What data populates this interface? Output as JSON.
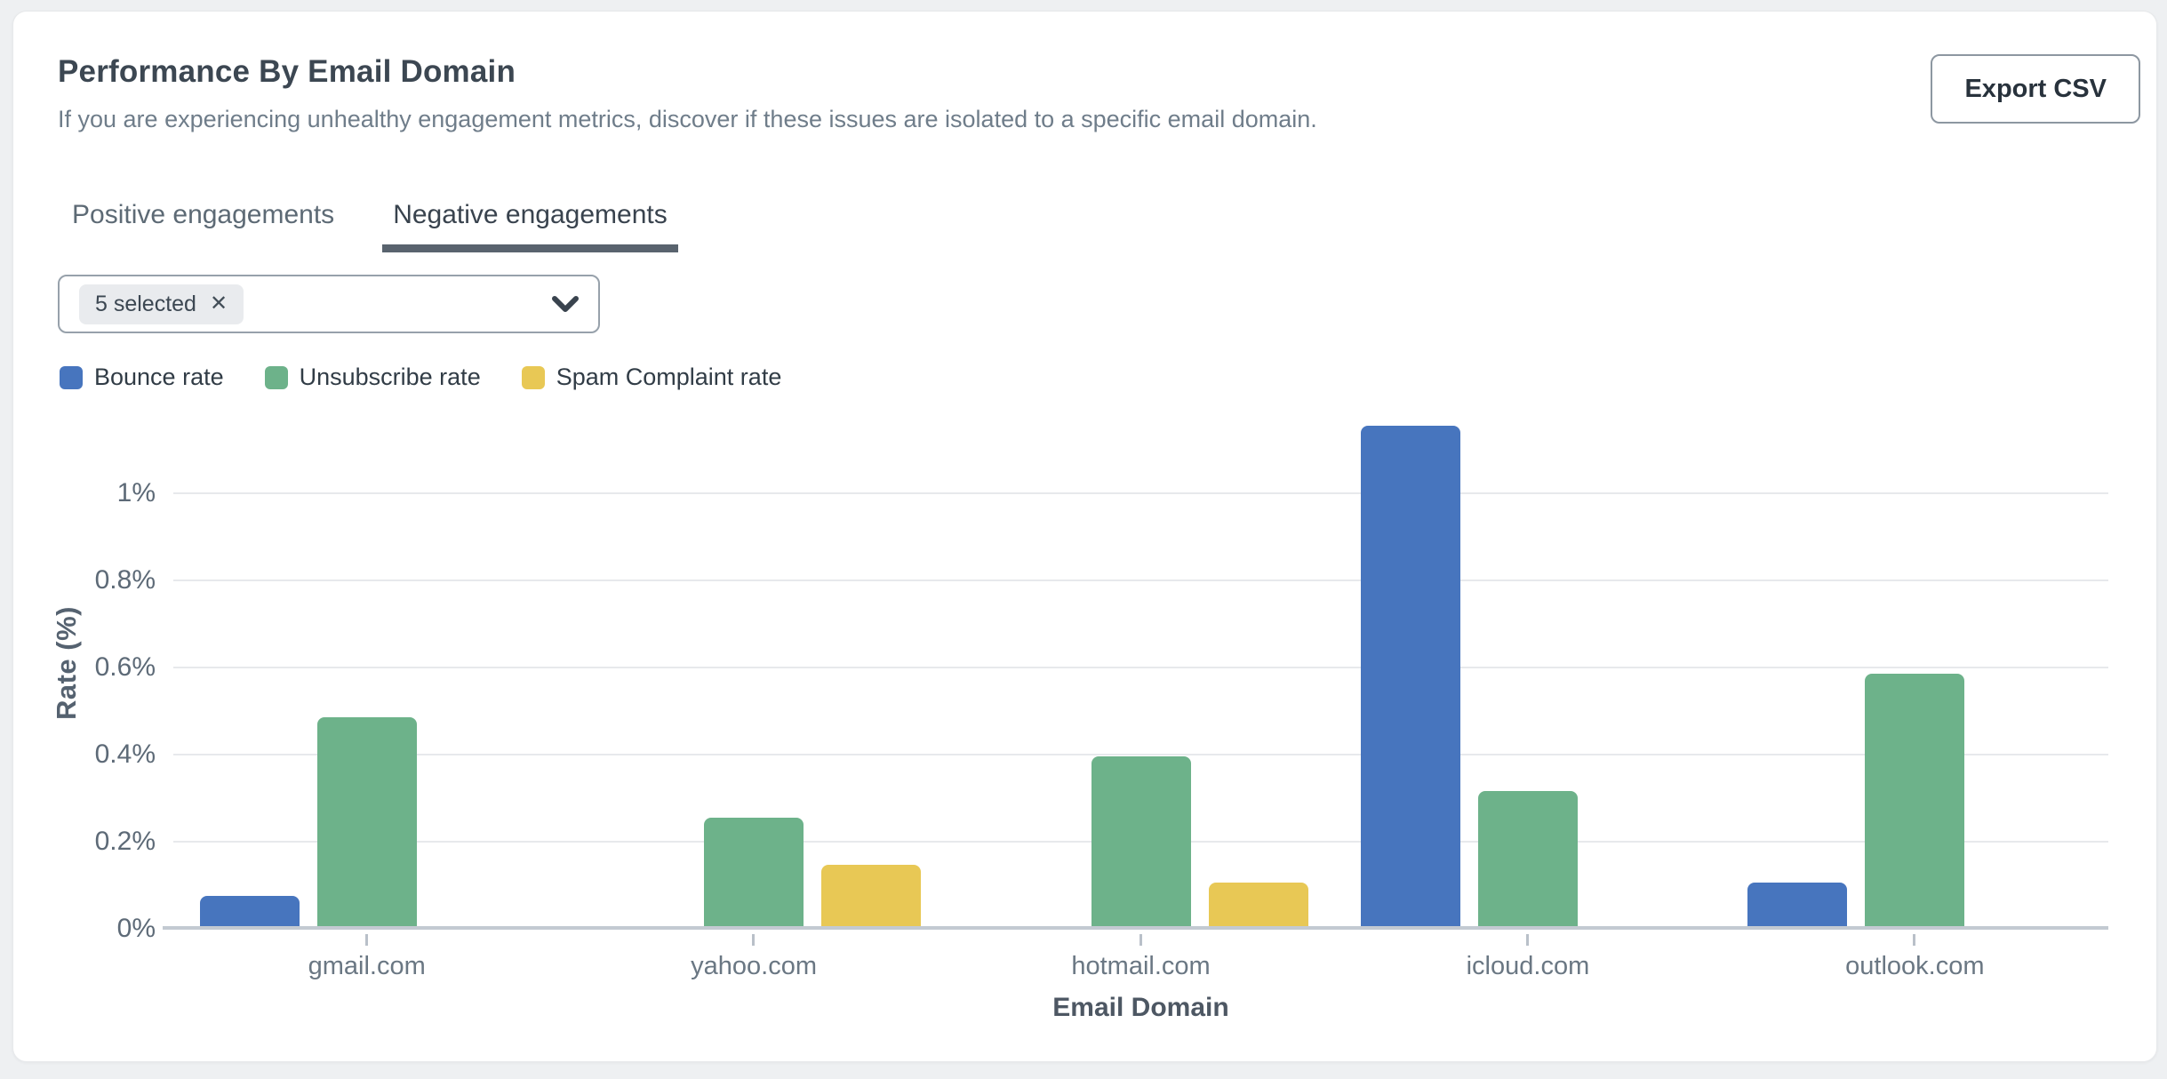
{
  "card": {
    "title": "Performance By Email Domain",
    "subtitle": "If you are experiencing unhealthy engagement metrics, discover if these issues are isolated to a specific email domain.",
    "export_button": "Export CSV"
  },
  "tabs": [
    {
      "label": "Positive engagements",
      "active": false
    },
    {
      "label": "Negative engagements",
      "active": true
    }
  ],
  "filter": {
    "chip_label": "5 selected",
    "chip_remove_icon": "✕"
  },
  "legend": [
    {
      "label": "Bounce rate",
      "color": "#4775BE"
    },
    {
      "label": "Unsubscribe rate",
      "color": "#6DB28A"
    },
    {
      "label": "Spam Complaint rate",
      "color": "#E8C855"
    }
  ],
  "chart_data": {
    "type": "bar",
    "categories": [
      "gmail.com",
      "yahoo.com",
      "hotmail.com",
      "icloud.com",
      "outlook.com"
    ],
    "series": [
      {
        "name": "Bounce rate",
        "color": "#4775BE",
        "values": [
          0.07,
          0,
          0,
          1.15,
          0.1
        ]
      },
      {
        "name": "Unsubscribe rate",
        "color": "#6DB28A",
        "values": [
          0.48,
          0.25,
          0.39,
          0.31,
          0.58
        ]
      },
      {
        "name": "Spam Complaint rate",
        "color": "#E8C855",
        "values": [
          0,
          0.14,
          0.1,
          0,
          0
        ]
      }
    ],
    "xlabel": "Email Domain",
    "ylabel": "Rate (%)",
    "y_ticks": [
      "0%",
      "0.2%",
      "0.4%",
      "0.6%",
      "0.8%",
      "1%"
    ],
    "ylim": [
      0,
      1.2
    ],
    "grid": true,
    "legend_position": "top",
    "colors": {
      "gridline": "#e7e9ec",
      "axis_line": "#c3cad2"
    }
  }
}
